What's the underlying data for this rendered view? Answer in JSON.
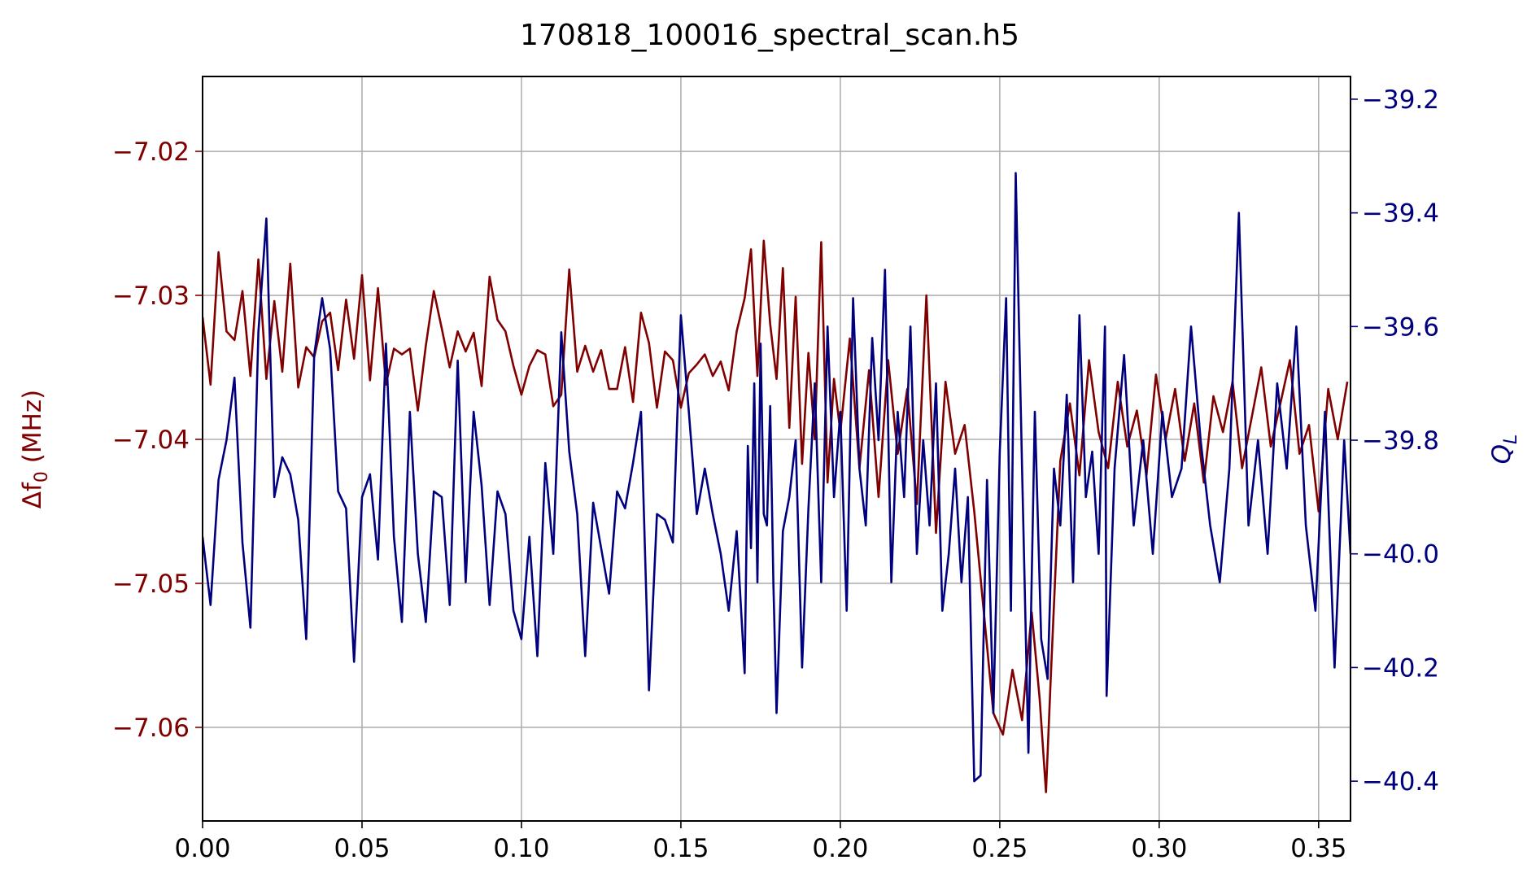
{
  "chart_data": {
    "type": "line",
    "title": "170818_100016_spectral_scan.h5",
    "xlabel": "",
    "xlim": [
      0.0,
      0.36
    ],
    "x_ticks": [
      "0.00",
      "0.05",
      "0.10",
      "0.15",
      "0.20",
      "0.25",
      "0.30",
      "0.35"
    ],
    "x_tick_values": [
      0.0,
      0.05,
      0.1,
      0.15,
      0.2,
      0.25,
      0.3,
      0.35
    ],
    "grid": true,
    "left_axis": {
      "label": "Δf0 (MHz)",
      "color": "#800000",
      "ylim": [
        -7.0665,
        -7.0148
      ],
      "ticks": [
        "−7.02",
        "−7.03",
        "−7.04",
        "−7.05",
        "−7.06"
      ],
      "tick_values": [
        -7.02,
        -7.03,
        -7.04,
        -7.05,
        -7.06
      ]
    },
    "right_axis": {
      "label": "QL",
      "color": "#00007f",
      "ylim": [
        -40.47,
        -39.16
      ],
      "ticks": [
        "−39.2",
        "−39.4",
        "−39.6",
        "−39.8",
        "−40.0",
        "−40.2",
        "−40.4"
      ],
      "tick_values": [
        -39.2,
        -39.4,
        -39.6,
        -39.8,
        -40.0,
        -40.2,
        -40.4
      ]
    },
    "series": [
      {
        "axis": "left",
        "color": "#800000",
        "x": [
          0.0,
          0.0025,
          0.005,
          0.0075,
          0.01,
          0.0125,
          0.015,
          0.0175,
          0.02,
          0.0225,
          0.025,
          0.0275,
          0.03,
          0.0325,
          0.035,
          0.0375,
          0.04,
          0.0425,
          0.045,
          0.0475,
          0.05,
          0.0525,
          0.055,
          0.0575,
          0.06,
          0.0625,
          0.065,
          0.0675,
          0.07,
          0.0725,
          0.075,
          0.0775,
          0.08,
          0.0825,
          0.085,
          0.0875,
          0.09,
          0.0925,
          0.095,
          0.0975,
          0.1,
          0.1025,
          0.105,
          0.1075,
          0.11,
          0.1125,
          0.115,
          0.1175,
          0.12,
          0.1225,
          0.125,
          0.1275,
          0.13,
          0.1325,
          0.135,
          0.1375,
          0.14,
          0.1425,
          0.145,
          0.1475,
          0.15,
          0.1525,
          0.155,
          0.1575,
          0.16,
          0.1625,
          0.165,
          0.1675,
          0.17,
          0.172,
          0.174,
          0.176,
          0.178,
          0.18,
          0.182,
          0.184,
          0.186,
          0.188,
          0.19,
          0.192,
          0.194,
          0.196,
          0.198,
          0.2,
          0.203,
          0.206,
          0.209,
          0.212,
          0.215,
          0.218,
          0.221,
          0.224,
          0.227,
          0.23,
          0.233,
          0.236,
          0.239,
          0.242,
          0.245,
          0.248,
          0.251,
          0.254,
          0.257,
          0.26,
          0.2625,
          0.2645,
          0.266,
          0.269,
          0.272,
          0.275,
          0.278,
          0.281,
          0.284,
          0.287,
          0.29,
          0.293,
          0.296,
          0.299,
          0.302,
          0.305,
          0.308,
          0.311,
          0.314,
          0.317,
          0.32,
          0.323,
          0.326,
          0.329,
          0.332,
          0.335,
          0.338,
          0.341,
          0.344,
          0.347,
          0.35,
          0.353,
          0.356,
          0.359
        ],
        "y": [
          -7.0315,
          -7.0362,
          -7.027,
          -7.0325,
          -7.0331,
          -7.0297,
          -7.0356,
          -7.0275,
          -7.0358,
          -7.0304,
          -7.0353,
          -7.0278,
          -7.0364,
          -7.0336,
          -7.0343,
          -7.0318,
          -7.0312,
          -7.0352,
          -7.0303,
          -7.0344,
          -7.0286,
          -7.0359,
          -7.0295,
          -7.0362,
          -7.0337,
          -7.0341,
          -7.0337,
          -7.038,
          -7.0335,
          -7.0297,
          -7.0323,
          -7.035,
          -7.0325,
          -7.0339,
          -7.0326,
          -7.0363,
          -7.0287,
          -7.0317,
          -7.0325,
          -7.0349,
          -7.0369,
          -7.0349,
          -7.0338,
          -7.0341,
          -7.0377,
          -7.0369,
          -7.0282,
          -7.0353,
          -7.0335,
          -7.0353,
          -7.0338,
          -7.0365,
          -7.0365,
          -7.0336,
          -7.0374,
          -7.0312,
          -7.0333,
          -7.0378,
          -7.0339,
          -7.0345,
          -7.0378,
          -7.0354,
          -7.0348,
          -7.0341,
          -7.0356,
          -7.0346,
          -7.0366,
          -7.0325,
          -7.0302,
          -7.0268,
          -7.0356,
          -7.0262,
          -7.032,
          -7.0358,
          -7.0281,
          -7.0392,
          -7.0301,
          -7.0417,
          -7.034,
          -7.04,
          -7.0263,
          -7.043,
          -7.0358,
          -7.0395,
          -7.033,
          -7.042,
          -7.0352,
          -7.044,
          -7.0345,
          -7.041,
          -7.0365,
          -7.0445,
          -7.03,
          -7.0465,
          -7.036,
          -7.041,
          -7.039,
          -7.045,
          -7.052,
          -7.059,
          -7.0605,
          -7.056,
          -7.0595,
          -7.052,
          -7.058,
          -7.0645,
          -7.0565,
          -7.0415,
          -7.0375,
          -7.0425,
          -7.0345,
          -7.0395,
          -7.042,
          -7.036,
          -7.0405,
          -7.038,
          -7.0425,
          -7.0355,
          -7.04,
          -7.0365,
          -7.0415,
          -7.0375,
          -7.043,
          -7.037,
          -7.0395,
          -7.036,
          -7.042,
          -7.0385,
          -7.035,
          -7.0405,
          -7.0375,
          -7.0345,
          -7.041,
          -7.039,
          -7.045,
          -7.0365,
          -7.04,
          -7.036
        ]
      },
      {
        "axis": "right",
        "color": "#00007f",
        "x": [
          0.0,
          0.0025,
          0.005,
          0.0075,
          0.01,
          0.0125,
          0.015,
          0.0175,
          0.02,
          0.0225,
          0.025,
          0.0275,
          0.03,
          0.0325,
          0.035,
          0.0375,
          0.04,
          0.0425,
          0.045,
          0.0475,
          0.05,
          0.0525,
          0.055,
          0.0575,
          0.06,
          0.0625,
          0.065,
          0.0675,
          0.07,
          0.0725,
          0.075,
          0.0775,
          0.08,
          0.0825,
          0.085,
          0.0875,
          0.09,
          0.0925,
          0.095,
          0.0975,
          0.1,
          0.1025,
          0.105,
          0.1075,
          0.11,
          0.1125,
          0.115,
          0.1175,
          0.12,
          0.1225,
          0.125,
          0.1275,
          0.13,
          0.1325,
          0.135,
          0.1375,
          0.14,
          0.1425,
          0.145,
          0.1475,
          0.15,
          0.1525,
          0.155,
          0.1575,
          0.16,
          0.1625,
          0.165,
          0.1675,
          0.17,
          0.171,
          0.172,
          0.173,
          0.174,
          0.175,
          0.176,
          0.177,
          0.178,
          0.179,
          0.18,
          0.182,
          0.184,
          0.186,
          0.188,
          0.19,
          0.192,
          0.194,
          0.196,
          0.198,
          0.2,
          0.202,
          0.204,
          0.206,
          0.208,
          0.21,
          0.212,
          0.214,
          0.216,
          0.218,
          0.22,
          0.222,
          0.224,
          0.226,
          0.228,
          0.23,
          0.232,
          0.234,
          0.236,
          0.238,
          0.24,
          0.242,
          0.244,
          0.246,
          0.248,
          0.25,
          0.252,
          0.2535,
          0.255,
          0.257,
          0.259,
          0.261,
          0.263,
          0.265,
          0.267,
          0.269,
          0.271,
          0.273,
          0.275,
          0.277,
          0.279,
          0.281,
          0.283,
          0.2835,
          0.286,
          0.289,
          0.292,
          0.295,
          0.298,
          0.301,
          0.304,
          0.307,
          0.31,
          0.313,
          0.316,
          0.319,
          0.322,
          0.325,
          0.328,
          0.331,
          0.334,
          0.337,
          0.34,
          0.343,
          0.346,
          0.349,
          0.352,
          0.355,
          0.358,
          0.36
        ],
        "y": [
          -39.97,
          -40.09,
          -39.87,
          -39.8,
          -39.69,
          -39.98,
          -40.13,
          -39.61,
          -39.41,
          -39.9,
          -39.83,
          -39.86,
          -39.94,
          -40.15,
          -39.65,
          -39.55,
          -39.64,
          -39.89,
          -39.92,
          -40.19,
          -39.9,
          -39.86,
          -40.01,
          -39.63,
          -39.97,
          -40.12,
          -39.75,
          -40.0,
          -40.12,
          -39.89,
          -39.9,
          -40.09,
          -39.66,
          -40.05,
          -39.75,
          -39.88,
          -40.09,
          -39.89,
          -39.93,
          -40.1,
          -40.15,
          -39.97,
          -40.18,
          -39.84,
          -40.0,
          -39.61,
          -39.82,
          -39.93,
          -40.18,
          -39.91,
          -39.99,
          -40.07,
          -39.89,
          -39.92,
          -39.84,
          -39.75,
          -40.24,
          -39.93,
          -39.94,
          -39.98,
          -39.58,
          -39.75,
          -39.93,
          -39.85,
          -39.93,
          -40.0,
          -40.1,
          -39.96,
          -40.21,
          -39.81,
          -39.99,
          -39.7,
          -40.05,
          -39.63,
          -39.93,
          -39.95,
          -39.74,
          -40.05,
          -40.28,
          -39.96,
          -39.9,
          -39.8,
          -40.2,
          -39.92,
          -39.7,
          -40.05,
          -39.6,
          -39.9,
          -39.75,
          -40.1,
          -39.55,
          -39.85,
          -39.95,
          -39.62,
          -39.8,
          -39.5,
          -40.05,
          -39.75,
          -39.9,
          -39.6,
          -40.0,
          -39.8,
          -39.95,
          -39.7,
          -40.1,
          -40.0,
          -39.85,
          -40.05,
          -39.9,
          -40.4,
          -40.39,
          -39.87,
          -40.28,
          -39.82,
          -39.55,
          -40.1,
          -39.33,
          -39.85,
          -40.35,
          -39.75,
          -40.15,
          -40.22,
          -39.85,
          -39.95,
          -39.72,
          -40.05,
          -39.58,
          -39.9,
          -39.82,
          -40.0,
          -39.6,
          -40.25,
          -39.85,
          -39.65,
          -39.95,
          -39.8,
          -40.0,
          -39.75,
          -39.9,
          -39.85,
          -39.6,
          -39.8,
          -39.95,
          -40.05,
          -39.85,
          -39.4,
          -39.95,
          -39.8,
          -40.0,
          -39.7,
          -39.85,
          -39.6,
          -39.95,
          -40.1,
          -39.75,
          -40.2,
          -39.8,
          -40.0
        ],
        "extra_segments_note": ""
      }
    ]
  }
}
